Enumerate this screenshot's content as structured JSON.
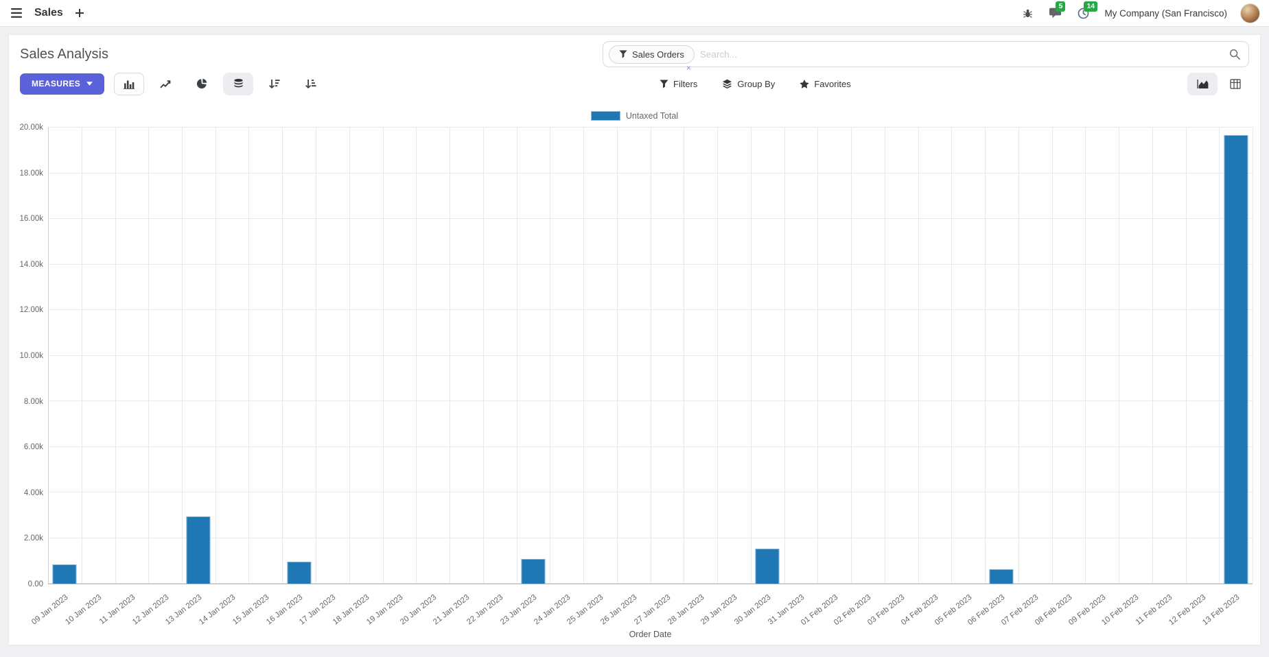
{
  "navbar": {
    "app_name": "Sales",
    "company": "My Company (San Francisco)",
    "badges": {
      "messages": "5",
      "activities": "14"
    }
  },
  "control_panel": {
    "title": "Sales Analysis",
    "measures_label": "MEASURES",
    "search": {
      "facet_label": "Sales Orders",
      "facet_remove": "×",
      "placeholder": "Search..."
    },
    "buttons": {
      "filters": "Filters",
      "group_by": "Group By",
      "favorites": "Favorites"
    }
  },
  "colors": {
    "primary_button": "#5b61d6",
    "badge_green": "#28a745",
    "bar_blue": "#1f77b4"
  },
  "chart_data": {
    "type": "bar",
    "title": "",
    "xlabel": "Order Date",
    "ylabel": "",
    "ylim": [
      0,
      20000
    ],
    "ytick_labels": [
      "0.00",
      "2.00k",
      "4.00k",
      "6.00k",
      "8.00k",
      "10.00k",
      "12.00k",
      "14.00k",
      "16.00k",
      "18.00k",
      "20.00k"
    ],
    "grid": true,
    "legend_position": "top",
    "categories": [
      "09 Jan 2023",
      "10 Jan 2023",
      "11 Jan 2023",
      "12 Jan 2023",
      "13 Jan 2023",
      "14 Jan 2023",
      "15 Jan 2023",
      "16 Jan 2023",
      "17 Jan 2023",
      "18 Jan 2023",
      "19 Jan 2023",
      "20 Jan 2023",
      "21 Jan 2023",
      "22 Jan 2023",
      "23 Jan 2023",
      "24 Jan 2023",
      "25 Jan 2023",
      "26 Jan 2023",
      "27 Jan 2023",
      "28 Jan 2023",
      "29 Jan 2023",
      "30 Jan 2023",
      "31 Jan 2023",
      "01 Feb 2023",
      "02 Feb 2023",
      "03 Feb 2023",
      "04 Feb 2023",
      "05 Feb 2023",
      "06 Feb 2023",
      "07 Feb 2023",
      "08 Feb 2023",
      "09 Feb 2023",
      "10 Feb 2023",
      "11 Feb 2023",
      "12 Feb 2023",
      "13 Feb 2023"
    ],
    "series": [
      {
        "name": "Untaxed Total",
        "color": "#1f77b4",
        "values": [
          840,
          0,
          0,
          0,
          2950,
          0,
          0,
          950,
          0,
          0,
          0,
          0,
          0,
          0,
          1070,
          0,
          0,
          0,
          0,
          0,
          0,
          1540,
          0,
          0,
          0,
          0,
          0,
          0,
          640,
          0,
          0,
          0,
          0,
          0,
          0,
          19680
        ]
      }
    ]
  }
}
